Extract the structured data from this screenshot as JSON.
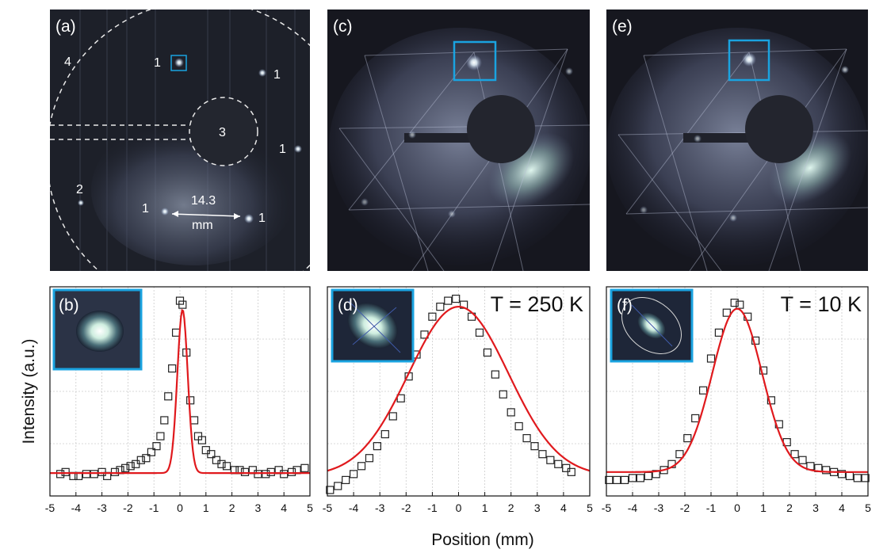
{
  "figure": {
    "top_panels": [
      {
        "label": "(a)",
        "spot_labels": [
          "1",
          "1",
          "1",
          "1",
          "1",
          "2",
          "3",
          "4"
        ],
        "distance_value": "14.3",
        "distance_unit": "mm"
      },
      {
        "label": "(c)"
      },
      {
        "label": "(e)"
      }
    ],
    "bottom_panels": [
      {
        "inset_label": "(b)",
        "temperature": ""
      },
      {
        "inset_label": "(d)",
        "temperature": "T = 250 K"
      },
      {
        "inset_label": "(f)",
        "temperature": "T = 10 K"
      }
    ],
    "y_axis_label": "Intensity (a.u.)",
    "x_axis_label": "Position (mm)"
  },
  "colors": {
    "fit": "#e0191d",
    "marker_box": "#1aa3e0",
    "data_marker": "#222222",
    "grid": "#cccccc"
  },
  "chart_data": [
    {
      "type": "scatter",
      "panel": "b",
      "xlim": [
        -5,
        5
      ],
      "ylim": [
        0,
        1.05
      ],
      "xticks": [
        -5,
        -4,
        -3,
        -2,
        -1,
        0,
        1,
        2,
        3,
        4,
        5
      ],
      "series": [
        {
          "name": "data",
          "kind": "points",
          "x": [
            -4.6,
            -4.4,
            -4.1,
            -3.9,
            -3.6,
            -3.3,
            -3.0,
            -2.8,
            -2.5,
            -2.3,
            -2.1,
            -1.9,
            -1.7,
            -1.5,
            -1.3,
            -1.1,
            -0.9,
            -0.75,
            -0.6,
            -0.45,
            -0.3,
            -0.15,
            0.0,
            0.1,
            0.25,
            0.4,
            0.55,
            0.7,
            0.85,
            1.0,
            1.2,
            1.4,
            1.6,
            1.8,
            2.1,
            2.3,
            2.5,
            2.8,
            3.0,
            3.3,
            3.5,
            3.8,
            4.0,
            4.3,
            4.5,
            4.8
          ],
          "y": [
            0.11,
            0.12,
            0.1,
            0.1,
            0.11,
            0.11,
            0.12,
            0.1,
            0.12,
            0.13,
            0.14,
            0.15,
            0.16,
            0.18,
            0.19,
            0.22,
            0.25,
            0.3,
            0.38,
            0.5,
            0.64,
            0.82,
            0.98,
            0.96,
            0.72,
            0.48,
            0.38,
            0.3,
            0.28,
            0.23,
            0.21,
            0.18,
            0.16,
            0.15,
            0.13,
            0.13,
            0.12,
            0.13,
            0.11,
            0.11,
            0.12,
            0.13,
            0.11,
            0.12,
            0.13,
            0.14
          ]
        },
        {
          "name": "fit",
          "kind": "gaussian",
          "amplitude": 0.82,
          "center": 0.1,
          "sigma": 0.2,
          "baseline": 0.115
        }
      ]
    },
    {
      "type": "scatter",
      "panel": "d",
      "temperature_K": 250,
      "xlim": [
        -5,
        5
      ],
      "ylim": [
        0,
        1.05
      ],
      "xticks": [
        -5,
        -4,
        -3,
        -2,
        -1,
        0,
        1,
        2,
        3,
        4,
        5
      ],
      "series": [
        {
          "name": "data",
          "kind": "points",
          "x": [
            -4.9,
            -4.6,
            -4.3,
            -4.0,
            -3.7,
            -3.4,
            -3.1,
            -2.8,
            -2.5,
            -2.2,
            -1.9,
            -1.6,
            -1.3,
            -1.0,
            -0.7,
            -0.4,
            -0.1,
            0.2,
            0.5,
            0.8,
            1.1,
            1.4,
            1.7,
            2.0,
            2.3,
            2.6,
            2.9,
            3.2,
            3.5,
            3.8,
            4.1,
            4.3
          ],
          "y": [
            0.03,
            0.05,
            0.08,
            0.11,
            0.15,
            0.19,
            0.25,
            0.31,
            0.4,
            0.49,
            0.6,
            0.71,
            0.81,
            0.9,
            0.95,
            0.98,
            0.99,
            0.96,
            0.9,
            0.82,
            0.72,
            0.61,
            0.51,
            0.42,
            0.35,
            0.29,
            0.25,
            0.21,
            0.18,
            0.16,
            0.14,
            0.12
          ]
        },
        {
          "name": "fit",
          "kind": "gaussian",
          "amplitude": 0.85,
          "center": 0.0,
          "sigma": 1.9,
          "baseline": 0.1
        }
      ]
    },
    {
      "type": "scatter",
      "panel": "f",
      "temperature_K": 10,
      "xlim": [
        -5,
        5
      ],
      "ylim": [
        0,
        1.05
      ],
      "xticks": [
        -5,
        -4,
        -3,
        -2,
        -1,
        0,
        1,
        2,
        3,
        4,
        5
      ],
      "series": [
        {
          "name": "data",
          "kind": "points",
          "x": [
            -4.9,
            -4.6,
            -4.3,
            -4.0,
            -3.7,
            -3.4,
            -3.1,
            -2.8,
            -2.5,
            -2.2,
            -1.9,
            -1.6,
            -1.3,
            -1.0,
            -0.7,
            -0.4,
            -0.1,
            0.1,
            0.4,
            0.7,
            1.0,
            1.3,
            1.6,
            1.9,
            2.2,
            2.5,
            2.8,
            3.1,
            3.4,
            3.7,
            4.0,
            4.3,
            4.6,
            4.9
          ],
          "y": [
            0.08,
            0.08,
            0.08,
            0.09,
            0.09,
            0.1,
            0.11,
            0.13,
            0.16,
            0.21,
            0.29,
            0.39,
            0.53,
            0.69,
            0.82,
            0.92,
            0.97,
            0.96,
            0.9,
            0.78,
            0.63,
            0.48,
            0.36,
            0.27,
            0.21,
            0.18,
            0.15,
            0.14,
            0.13,
            0.12,
            0.11,
            0.1,
            0.09,
            0.09
          ]
        },
        {
          "name": "fit",
          "kind": "gaussian",
          "amplitude": 0.82,
          "center": 0.0,
          "sigma": 0.95,
          "baseline": 0.12
        }
      ]
    }
  ]
}
